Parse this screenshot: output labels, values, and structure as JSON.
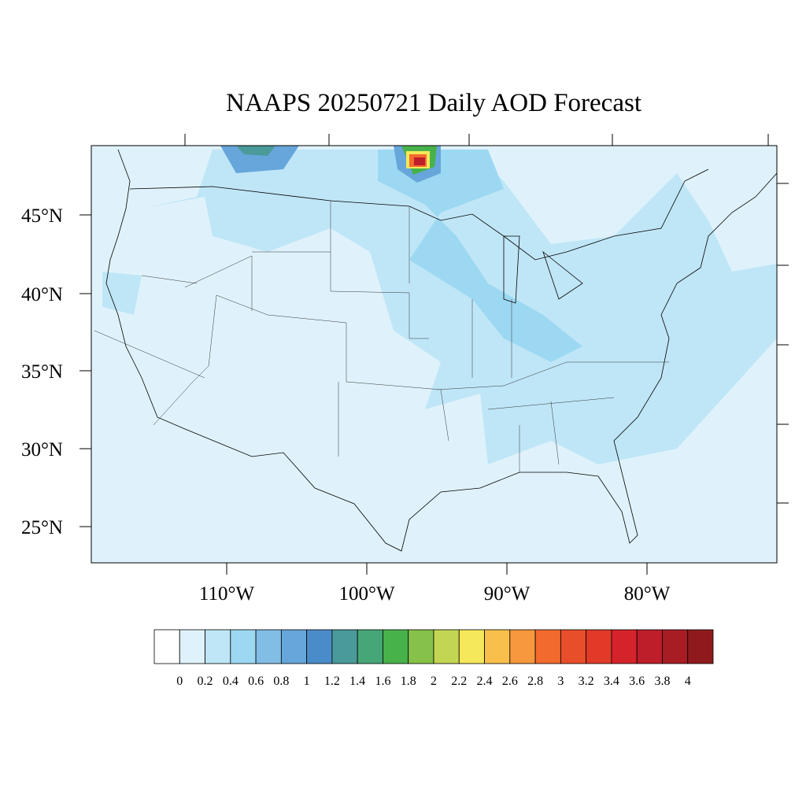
{
  "title": "NAAPS 20250721 Daily AOD Forecast",
  "lat_labels": [
    "45°N",
    "40°N",
    "35°N",
    "30°N",
    "25°N"
  ],
  "lon_labels": [
    "110°W",
    "100°W",
    "90°W",
    "80°W"
  ],
  "colorbar": {
    "colors": [
      "#ffffff",
      "#dff2fb",
      "#bfe6f7",
      "#9dd8f2",
      "#82bde6",
      "#66a6da",
      "#4a8bc9",
      "#4a9a9a",
      "#47a678",
      "#48b24a",
      "#86c24a",
      "#c3d654",
      "#f5e85a",
      "#f8c04a",
      "#f7983e",
      "#f26a2e",
      "#e94e2a",
      "#e23a28",
      "#d4232b",
      "#bd1e2a",
      "#a81c24",
      "#8f1a1d"
    ],
    "labels": [
      "0",
      "0.2",
      "0.4",
      "0.6",
      "0.8",
      "1",
      "1.2",
      "1.4",
      "1.6",
      "1.8",
      "2",
      "2.2",
      "2.4",
      "2.6",
      "2.8",
      "3",
      "3.2",
      "3.4",
      "3.6",
      "3.8",
      "4"
    ]
  }
}
